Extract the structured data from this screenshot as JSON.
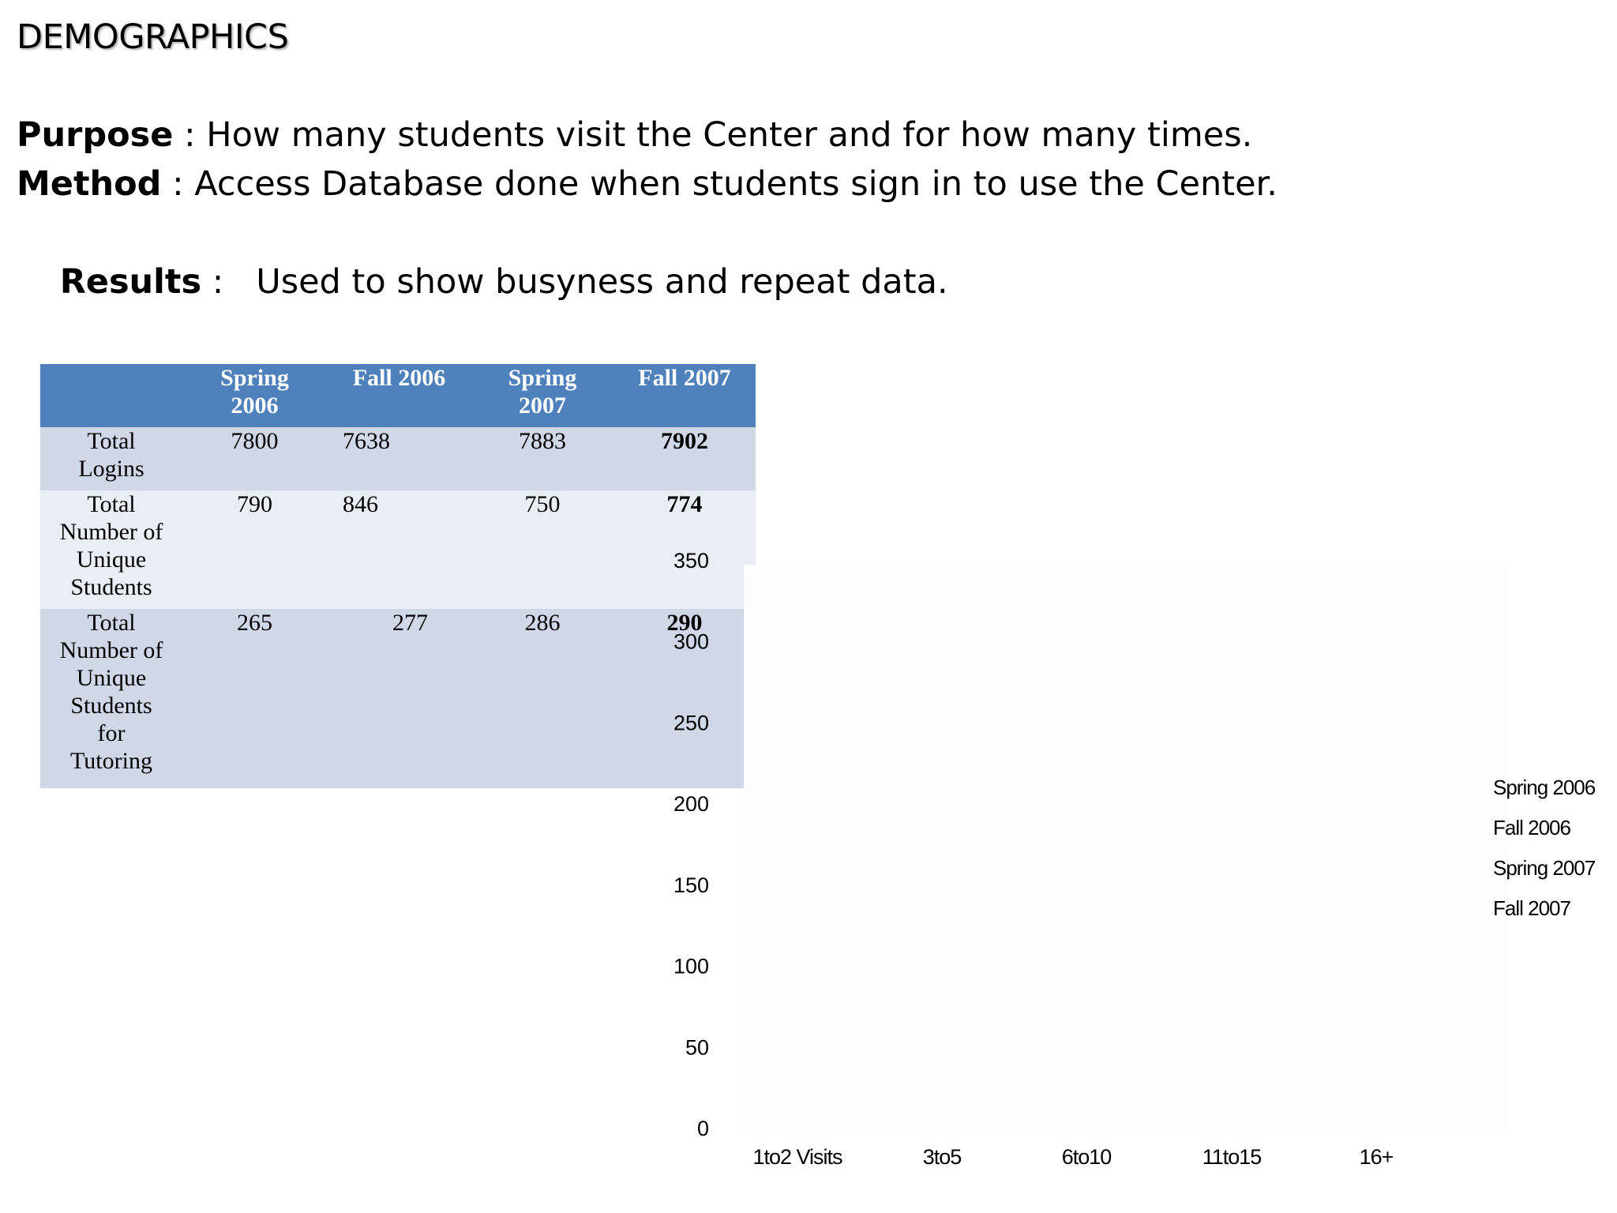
{
  "slide": {
    "title": "DEMOGRAPHICS",
    "purpose_key": "Purpose",
    "purpose_text": " : How many students visit the Center and for how many times.",
    "method_key": "Method",
    "method_text": " : Access Database done when students sign in to use the Center.",
    "results_key": "Results",
    "results_text": " :   Used to show busyness and repeat data."
  },
  "table": {
    "headers": [
      "",
      "Spring 2006",
      "Fall 2006",
      "Spring 2007",
      "Fall 2007"
    ],
    "header_lines": [
      [
        "",
        ""
      ],
      [
        "Spring",
        "2006"
      ],
      [
        "Fall 2006",
        ""
      ],
      [
        "Spring",
        "2007"
      ],
      [
        "Fall 2007",
        ""
      ]
    ],
    "rows": [
      {
        "label_lines": [
          "Total",
          "Logins"
        ],
        "values": [
          "7800",
          "7638",
          "7883",
          "7902"
        ]
      },
      {
        "label_lines": [
          "Total",
          "Number of",
          "Unique",
          "Students"
        ],
        "values": [
          "790",
          "846",
          "750",
          "774"
        ]
      },
      {
        "label_lines": [
          "Total",
          "Number of",
          "Unique",
          "Students",
          "for",
          "Tutoring"
        ],
        "values": [
          "265",
          "277",
          "286",
          "290"
        ]
      }
    ]
  },
  "chart_data": {
    "type": "bar",
    "categories": [
      "1to2 Visits",
      "3to5",
      "6to10",
      "11to15",
      "16+"
    ],
    "series": [
      {
        "name": "Spring 2006",
        "values": [
          null,
          null,
          null,
          null,
          null
        ]
      },
      {
        "name": "Fall 2006",
        "values": [
          null,
          null,
          null,
          null,
          null
        ]
      },
      {
        "name": "Spring 2007",
        "values": [
          null,
          null,
          null,
          null,
          null
        ]
      },
      {
        "name": "Fall 2007",
        "values": [
          null,
          null,
          null,
          null,
          null
        ]
      }
    ],
    "y_ticks": [
      "0",
      "50",
      "100",
      "150",
      "200",
      "250",
      "300",
      "350"
    ],
    "ylim": [
      0,
      350
    ],
    "legend_position": "right",
    "title": "",
    "xlabel": "",
    "ylabel": ""
  }
}
